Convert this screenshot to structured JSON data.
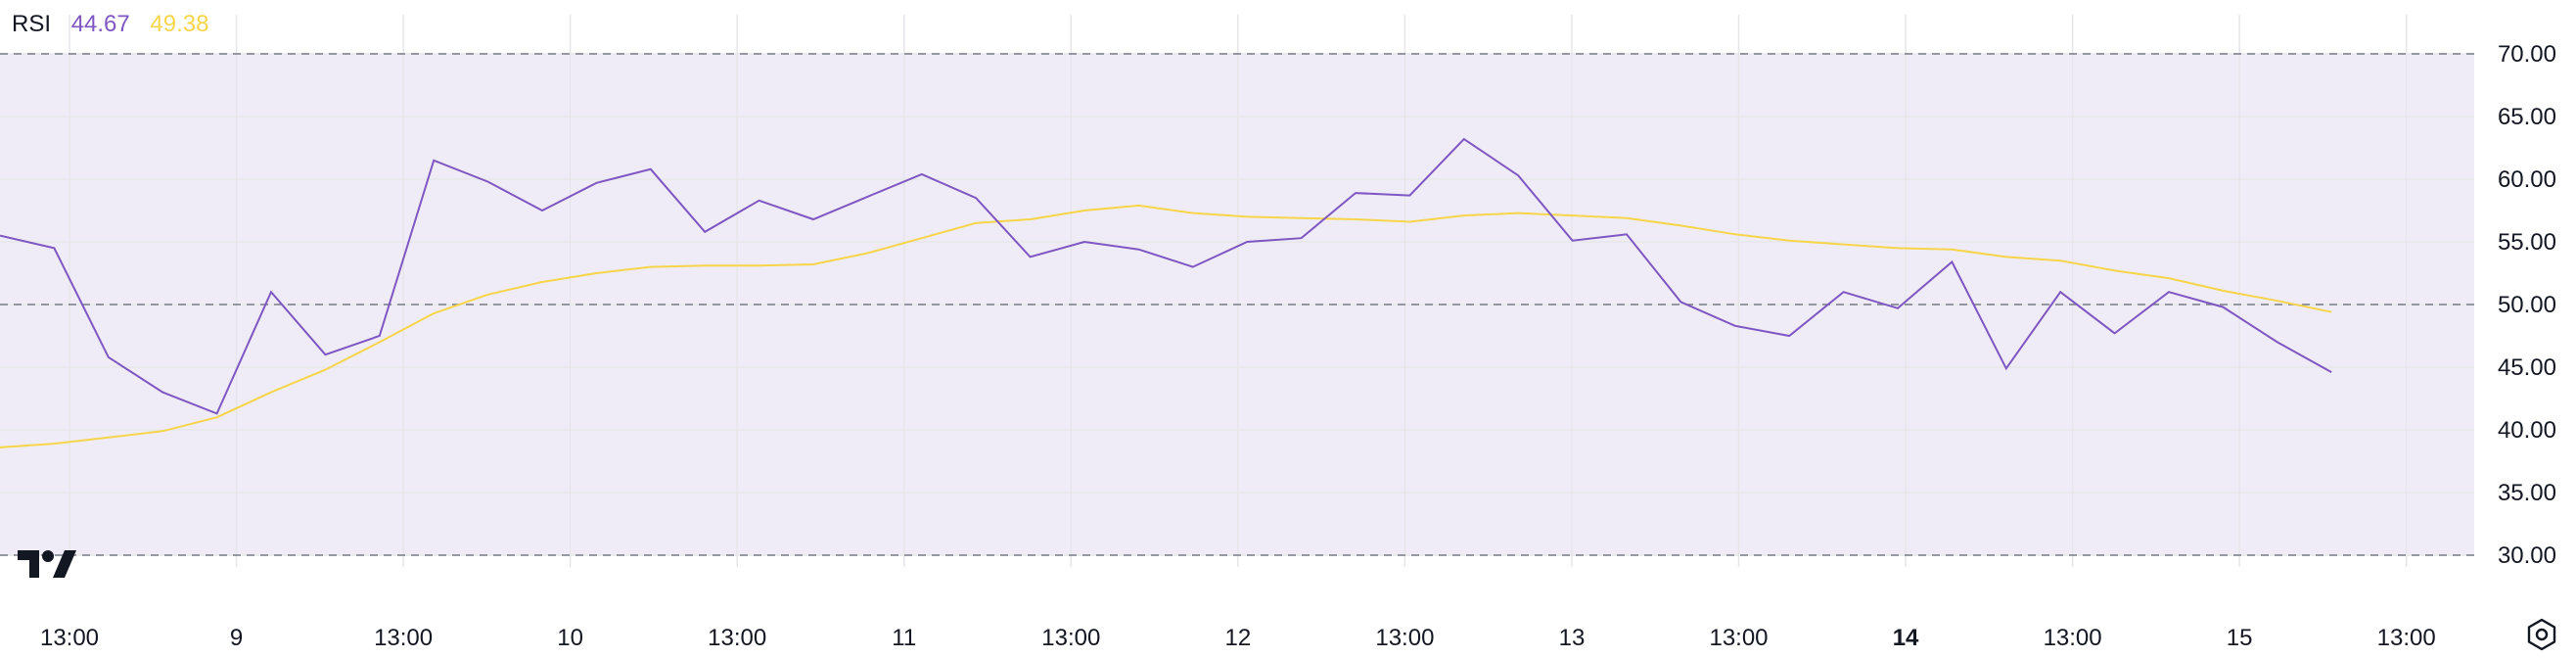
{
  "legend": {
    "indicator_label": "RSI",
    "rsi_value": "44.67",
    "ma_value": "49.38"
  },
  "colors": {
    "rsi_line": "#7e57c2",
    "ma_line": "#f7d54a",
    "band_fill": "#efecf7",
    "grid": "#e6e6ea",
    "dashed": "#787b86",
    "text": "#131722"
  },
  "icons": {
    "logo": "tradingview-logo-icon",
    "settings": "settings-gear-icon"
  },
  "chart_data": {
    "type": "line",
    "x_labels": [
      {
        "text": "13:00",
        "bold": false
      },
      {
        "text": "9",
        "bold": false
      },
      {
        "text": "13:00",
        "bold": false
      },
      {
        "text": "10",
        "bold": false
      },
      {
        "text": "13:00",
        "bold": false
      },
      {
        "text": "11",
        "bold": false
      },
      {
        "text": "13:00",
        "bold": false
      },
      {
        "text": "12",
        "bold": false
      },
      {
        "text": "13:00",
        "bold": false
      },
      {
        "text": "13",
        "bold": false
      },
      {
        "text": "13:00",
        "bold": false
      },
      {
        "text": "14",
        "bold": true
      },
      {
        "text": "13:00",
        "bold": false
      },
      {
        "text": "15",
        "bold": false
      },
      {
        "text": "13:00",
        "bold": false
      }
    ],
    "y_ticks": [
      "70.00",
      "65.00",
      "60.00",
      "55.00",
      "50.00",
      "45.00",
      "40.00",
      "35.00",
      "30.00"
    ],
    "ylim": [
      30,
      70
    ],
    "bands": {
      "upper": 70,
      "middle": 50,
      "lower": 30
    },
    "series": [
      {
        "values": [
          55.5,
          54.5,
          45.8,
          43.0,
          41.3,
          51.0,
          46.0,
          47.5,
          61.5,
          59.8,
          57.5,
          59.7,
          60.8,
          55.8,
          58.3,
          56.8,
          58.6,
          60.4,
          58.5,
          53.8,
          55.0,
          54.4,
          53.0,
          55.0,
          55.3,
          58.9,
          58.7,
          63.2,
          60.3,
          55.1,
          55.6,
          50.2,
          48.3,
          47.5,
          51.0,
          49.7,
          53.4,
          44.9,
          51.0,
          47.7,
          51.0,
          49.8,
          47.0,
          44.6
        ]
      },
      {
        "values": [
          38.6,
          38.9,
          39.4,
          39.9,
          41.0,
          43.0,
          44.8,
          47.0,
          49.3,
          50.8,
          51.8,
          52.5,
          53.0,
          53.1,
          53.1,
          53.2,
          54.1,
          55.3,
          56.5,
          56.8,
          57.5,
          57.9,
          57.3,
          57.0,
          56.9,
          56.8,
          56.6,
          57.1,
          57.3,
          57.1,
          56.9,
          56.3,
          55.6,
          55.1,
          54.8,
          54.5,
          54.4,
          53.8,
          53.5,
          52.7,
          52.1,
          51.1,
          50.3,
          49.4
        ]
      }
    ]
  }
}
